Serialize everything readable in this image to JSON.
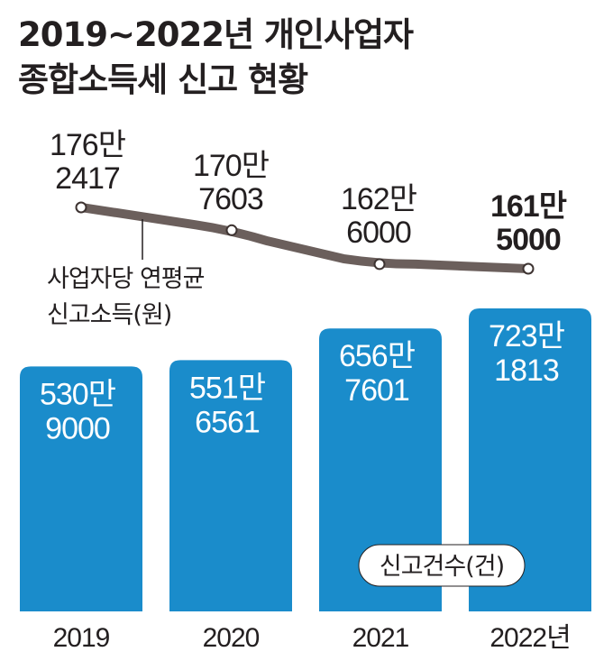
{
  "title": {
    "line1": "2019~2022년 개인사업자",
    "line2": "종합소득세 신고 현황"
  },
  "colors": {
    "bar": "#1a8ccb",
    "line": "#6b5f5c",
    "text": "#231f20"
  },
  "chart_data": {
    "type": "bar+line",
    "categories": [
      "2019",
      "2020",
      "2021",
      "2022년"
    ],
    "series": [
      {
        "name": "신고건수(건)",
        "type": "bar",
        "values": [
          5309000,
          5516561,
          6567601,
          7231813
        ],
        "labels": [
          [
            "530만",
            "9000"
          ],
          [
            "551만",
            "6561"
          ],
          [
            "656만",
            "7601"
          ],
          [
            "723만",
            "1813"
          ]
        ]
      },
      {
        "name": "사업자당 연평균 신고소득(원)",
        "type": "line",
        "values": [
          1762417,
          1707603,
          1626000,
          1615000
        ],
        "labels": [
          [
            "176만",
            "2417"
          ],
          [
            "170만",
            "7603"
          ],
          [
            "162만",
            "6000"
          ],
          [
            "161만",
            "5000"
          ]
        ]
      }
    ],
    "legend": {
      "line_label": [
        "사업자당 연평균",
        "신고소득(원)"
      ],
      "bar_label": "신고건수(건)"
    }
  }
}
